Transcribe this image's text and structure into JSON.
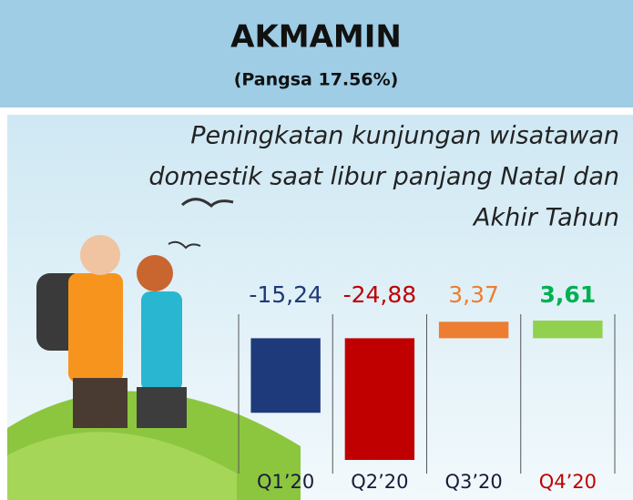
{
  "chart_data": {
    "type": "bar",
    "title": "AKMAMIN",
    "subtitle": "(Pangsa 17.56%)",
    "annotation": [
      "Peningkatan kunjungan wisatawan",
      "domestik saat libur panjang Natal dan",
      "Akhir Tahun"
    ],
    "categories": [
      "Q1’20",
      "Q2’20",
      "Q3’20",
      "Q4’20"
    ],
    "values": [
      -15.24,
      -24.88,
      3.37,
      3.61
    ],
    "value_labels": [
      "-15,24",
      "-24,88",
      "3,37",
      "3,61"
    ],
    "colors": [
      "#1f3a7a",
      "#c00000",
      "#ed7d31",
      "#92d050"
    ]
  }
}
